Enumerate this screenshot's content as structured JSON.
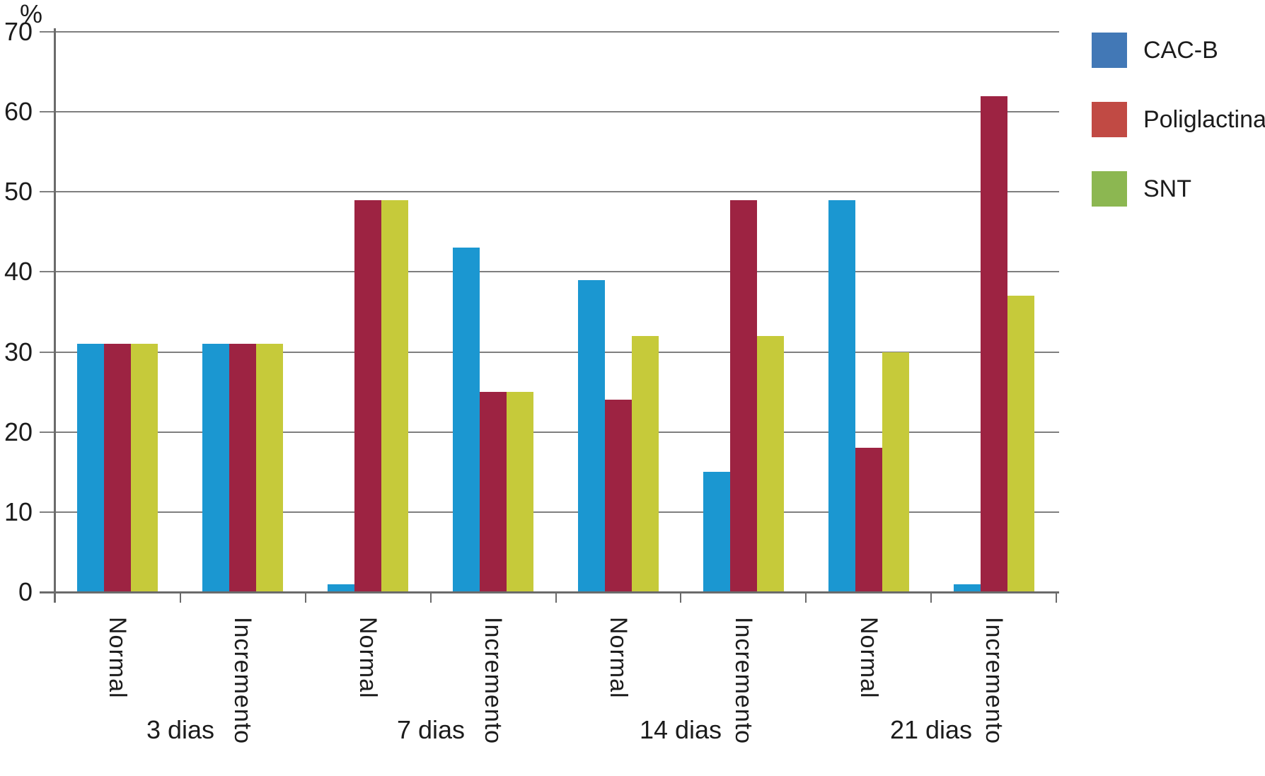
{
  "chart_data": {
    "type": "bar",
    "title": "",
    "ylabel": "%",
    "xlabel": "",
    "ylim": [
      0,
      70
    ],
    "yticks": [
      0,
      10,
      20,
      30,
      40,
      50,
      60,
      70
    ],
    "grid": true,
    "legend_position": "right",
    "categories": [
      "Normal",
      "Incremento",
      "Normal",
      "Incremento",
      "Normal",
      "Incremento",
      "Normal",
      "Incremento"
    ],
    "groups": [
      "3 dias",
      "7 dias",
      "14 dias",
      "21 dias"
    ],
    "series": [
      {
        "name": "CAC-B",
        "bar_color": "#1b97d1",
        "legend_color": "#4278b6",
        "values": [
          31,
          31,
          1,
          43,
          39,
          15,
          49,
          1
        ]
      },
      {
        "name": "Poliglactina",
        "bar_color": "#9d2342",
        "legend_color": "#c14a44",
        "values": [
          31,
          31,
          49,
          25,
          24,
          49,
          18,
          62
        ]
      },
      {
        "name": "SNT",
        "bar_color": "#c6ca3a",
        "legend_color": "#8cb751",
        "values": [
          31,
          31,
          49,
          25,
          32,
          32,
          30,
          37
        ]
      }
    ]
  },
  "colors": {
    "grid": "#7f7f7f",
    "axis": "#6b6b6b",
    "text": "#1c1c1c",
    "background": "#ffffff"
  }
}
